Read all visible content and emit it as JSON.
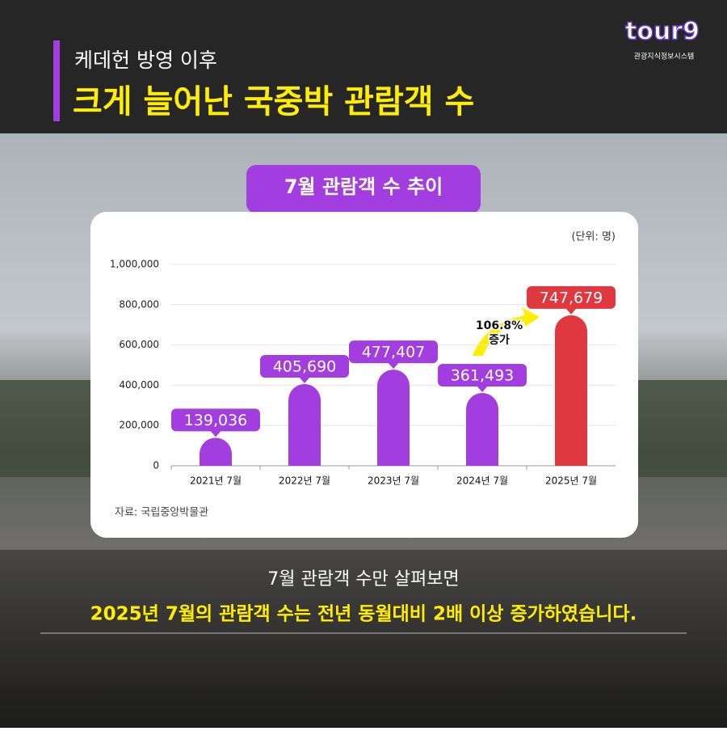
{
  "logo": {
    "name": "tour9",
    "caption": "관광지식정보시스템"
  },
  "header": {
    "subtitle": "케데헌 방영 이후",
    "title": "크게 늘어난 국중박 관람객 수"
  },
  "chart_data": {
    "type": "bar",
    "title": "7월 관람객 수 추이",
    "unit_note": "(단위: 명)",
    "categories": [
      "2021년 7월",
      "2022년 7월",
      "2023년 7월",
      "2024년 7월",
      "2025년 7월"
    ],
    "values": [
      139036,
      405690,
      477407,
      361493,
      747679
    ],
    "value_labels": [
      "139,036",
      "405,690",
      "477,407",
      "361,493",
      "747,679"
    ],
    "colors": [
      "#a23de0",
      "#a23de0",
      "#a23de0",
      "#a23de0",
      "#e0383f"
    ],
    "ylim": [
      0,
      1000000
    ],
    "yticks": [
      0,
      {
        "value": 200000,
        "label": "200,000"
      },
      {
        "value": 400000,
        "label": "400,000"
      },
      {
        "value": 600000,
        "label": "600,000"
      },
      {
        "value": 800000,
        "label": "800,000"
      },
      {
        "value": 1000000,
        "label": "1,000,000"
      }
    ],
    "grid": true,
    "annotation": {
      "line1": "106.8%",
      "line2": "증가"
    },
    "source": "자료: 국립중앙박물관"
  },
  "footer": {
    "line1": "7월 관람객 수만 살펴보면",
    "line2": "2025년 7월의 관람객 수는 전년 동월대비 2배 이상 증가하였습니다."
  }
}
